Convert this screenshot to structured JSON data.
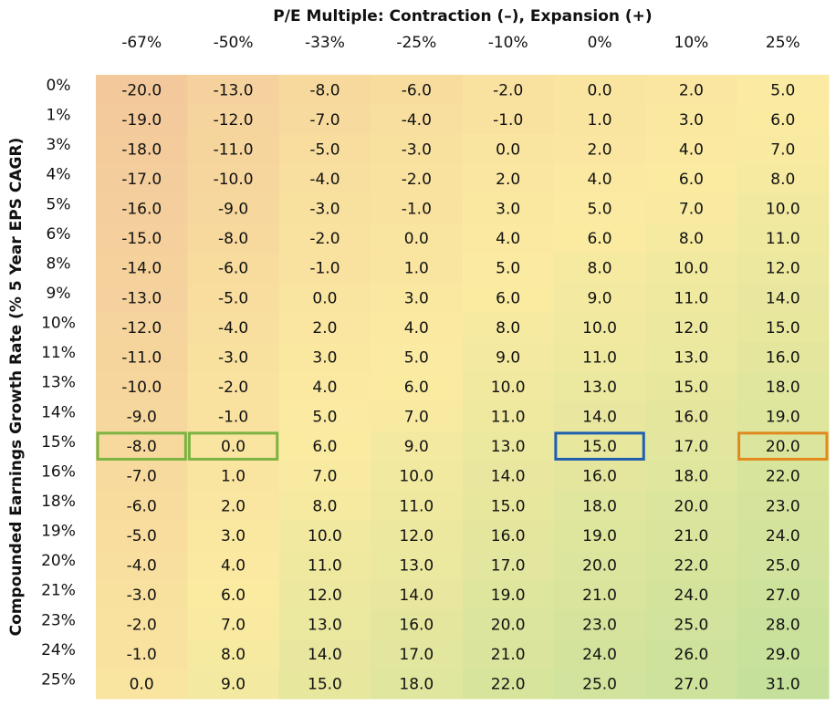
{
  "chart_data": {
    "type": "heatmap",
    "x_title": "P/E Multiple: Contraction (–), Expansion (+)",
    "y_title": "Compounded Earnings Growth Rate (% 5 Year EPS CAGR)",
    "x_categories": [
      "-67%",
      "-50%",
      "-33%",
      "-25%",
      "-10%",
      "0%",
      "10%",
      "25%"
    ],
    "y_categories": [
      "0%",
      "1%",
      "3%",
      "4%",
      "5%",
      "6%",
      "8%",
      "9%",
      "10%",
      "11%",
      "13%",
      "14%",
      "15%",
      "16%",
      "18%",
      "19%",
      "20%",
      "21%",
      "23%",
      "24%",
      "25%"
    ],
    "values": [
      [
        -20,
        -13,
        -8,
        -6,
        -2,
        0,
        2,
        5
      ],
      [
        -19,
        -12,
        -7,
        -4,
        -1,
        1,
        3,
        6
      ],
      [
        -18,
        -11,
        -5,
        -3,
        0,
        2,
        4,
        7
      ],
      [
        -17,
        -10,
        -4,
        -2,
        2,
        4,
        6,
        8
      ],
      [
        -16,
        -9,
        -3,
        -1,
        3,
        5,
        7,
        10
      ],
      [
        -15,
        -8,
        -2,
        0,
        4,
        6,
        8,
        11
      ],
      [
        -14,
        -6,
        -1,
        1,
        5,
        8,
        10,
        12
      ],
      [
        -13,
        -5,
        0,
        3,
        6,
        9,
        11,
        14
      ],
      [
        -12,
        -4,
        2,
        4,
        8,
        10,
        12,
        15
      ],
      [
        -11,
        -3,
        3,
        5,
        9,
        11,
        13,
        16
      ],
      [
        -10,
        -2,
        4,
        6,
        10,
        13,
        15,
        18
      ],
      [
        -9,
        -1,
        5,
        7,
        11,
        14,
        16,
        19
      ],
      [
        -8,
        0,
        6,
        9,
        13,
        15,
        17,
        20
      ],
      [
        -7,
        1,
        7,
        10,
        14,
        16,
        18,
        22
      ],
      [
        -6,
        2,
        8,
        11,
        15,
        18,
        20,
        23
      ],
      [
        -5,
        3,
        10,
        12,
        16,
        19,
        21,
        24
      ],
      [
        -4,
        4,
        11,
        13,
        17,
        20,
        22,
        25
      ],
      [
        -3,
        6,
        12,
        14,
        19,
        21,
        24,
        27
      ],
      [
        -2,
        7,
        13,
        16,
        20,
        23,
        25,
        28
      ],
      [
        -1,
        8,
        14,
        17,
        21,
        24,
        26,
        29
      ],
      [
        0,
        9,
        15,
        18,
        22,
        25,
        27,
        31
      ]
    ],
    "value_labels": [
      [
        "-20.0",
        "-13.0",
        "-8.0",
        "-6.0",
        "-2.0",
        "0.0",
        "2.0",
        "5.0"
      ],
      [
        "-19.0",
        "-12.0",
        "-7.0",
        "-4.0",
        "-1.0",
        "1.0",
        "3.0",
        "6.0"
      ],
      [
        "-18.0",
        "-11.0",
        "-5.0",
        "-3.0",
        "0.0",
        "2.0",
        "4.0",
        "7.0"
      ],
      [
        "-17.0",
        "-10.0",
        "-4.0",
        "-2.0",
        "2.0",
        "4.0",
        "6.0",
        "8.0"
      ],
      [
        "-16.0",
        "-9.0",
        "-3.0",
        "-1.0",
        "3.0",
        "5.0",
        "7.0",
        "10.0"
      ],
      [
        "-15.0",
        "-8.0",
        "-2.0",
        "0.0",
        "4.0",
        "6.0",
        "8.0",
        "11.0"
      ],
      [
        "-14.0",
        "-6.0",
        "-1.0",
        "1.0",
        "5.0",
        "8.0",
        "10.0",
        "12.0"
      ],
      [
        "-13.0",
        "-5.0",
        "0.0",
        "3.0",
        "6.0",
        "9.0",
        "11.0",
        "14.0"
      ],
      [
        "-12.0",
        "-4.0",
        "2.0",
        "4.0",
        "8.0",
        "10.0",
        "12.0",
        "15.0"
      ],
      [
        "-11.0",
        "-3.0",
        "3.0",
        "5.0",
        "9.0",
        "11.0",
        "13.0",
        "16.0"
      ],
      [
        "-10.0",
        "-2.0",
        "4.0",
        "6.0",
        "10.0",
        "13.0",
        "15.0",
        "18.0"
      ],
      [
        "-9.0",
        "-1.0",
        "5.0",
        "7.0",
        "11.0",
        "14.0",
        "16.0",
        "19.0"
      ],
      [
        "-8.0",
        "0.0",
        "6.0",
        "9.0",
        "13.0",
        "15.0",
        "17.0",
        "20.0"
      ],
      [
        "-7.0",
        "1.0",
        "7.0",
        "10.0",
        "14.0",
        "16.0",
        "18.0",
        "22.0"
      ],
      [
        "-6.0",
        "2.0",
        "8.0",
        "11.0",
        "15.0",
        "18.0",
        "20.0",
        "23.0"
      ],
      [
        "-5.0",
        "3.0",
        "10.0",
        "12.0",
        "16.0",
        "19.0",
        "21.0",
        "24.0"
      ],
      [
        "-4.0",
        "4.0",
        "11.0",
        "13.0",
        "17.0",
        "20.0",
        "22.0",
        "25.0"
      ],
      [
        "-3.0",
        "6.0",
        "12.0",
        "14.0",
        "19.0",
        "21.0",
        "24.0",
        "27.0"
      ],
      [
        "-2.0",
        "7.0",
        "13.0",
        "16.0",
        "20.0",
        "23.0",
        "25.0",
        "28.0"
      ],
      [
        "-1.0",
        "8.0",
        "14.0",
        "17.0",
        "21.0",
        "24.0",
        "26.0",
        "29.0"
      ],
      [
        "0.0",
        "9.0",
        "15.0",
        "18.0",
        "22.0",
        "25.0",
        "27.0",
        "31.0"
      ]
    ],
    "color_scale": {
      "min": "#f3c99b",
      "mid": "#fbeba1",
      "max": "#c4e09a"
    },
    "highlights": [
      {
        "row": 12,
        "col": 0,
        "color": "#7cb342"
      },
      {
        "row": 12,
        "col": 1,
        "color": "#7cb342"
      },
      {
        "row": 12,
        "col": 5,
        "color": "#1f5fb0"
      },
      {
        "row": 12,
        "col": 7,
        "color": "#e08a1e"
      }
    ]
  }
}
